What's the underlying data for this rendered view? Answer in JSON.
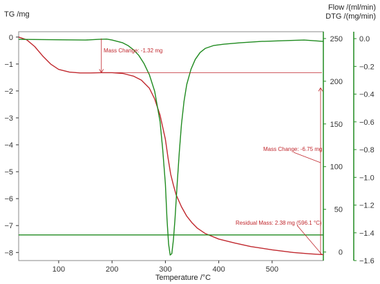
{
  "colors": {
    "tg": "#c0272d",
    "dtg": "#1e8a1e",
    "flow": "#1e8a1e",
    "axis": "#333333",
    "frame": "#888888"
  },
  "chart_data": {
    "type": "line",
    "xlabel": "Temperature /°C",
    "ylabel_left": "TG /mg",
    "ylabel_right_flow": "Flow /(ml/min)",
    "ylabel_right_dtg": "DTG /(mg/min)",
    "xlim": [
      25,
      596
    ],
    "ylim_tg": [
      -8.3,
      0.2
    ],
    "ylim_flow": [
      -10,
      258
    ],
    "ylim_dtg": [
      -1.6,
      0.05
    ],
    "x_ticks": [
      100,
      200,
      300,
      400,
      500
    ],
    "x_tick_labels": [
      "100",
      "200",
      "300",
      "400",
      "500"
    ],
    "tg_ticks": [
      0,
      -1,
      -2,
      -3,
      -4,
      -5,
      -6,
      -7,
      -8
    ],
    "tg_tick_labels": [
      "0",
      "−1",
      "−2",
      "−3",
      "−4",
      "−5",
      "−6",
      "−7",
      "−8"
    ],
    "flow_ticks": [
      0,
      50,
      100,
      150,
      200,
      250
    ],
    "flow_tick_labels": [
      "0",
      "50",
      "100",
      "150",
      "200",
      "250"
    ],
    "dtg_ticks": [
      0.0,
      -0.2,
      -0.4,
      -0.6,
      -0.8,
      -1.0,
      -1.2,
      -1.4,
      -1.6
    ],
    "dtg_tick_labels": [
      "0.0",
      "−0.2",
      "−0.4",
      "−0.6",
      "−0.8",
      "−1.0",
      "−1.2",
      "−1.4",
      "−1.6"
    ],
    "series": [
      {
        "name": "TG",
        "axis": "tg",
        "x": [
          25,
          40,
          55,
          70,
          85,
          100,
          120,
          140,
          160,
          180,
          200,
          220,
          240,
          255,
          270,
          280,
          290,
          300,
          305,
          310,
          315,
          320,
          330,
          340,
          350,
          360,
          375,
          400,
          430,
          460,
          500,
          540,
          570,
          596
        ],
        "y": [
          0,
          -0.1,
          -0.35,
          -0.7,
          -1.0,
          -1.2,
          -1.3,
          -1.33,
          -1.33,
          -1.32,
          -1.32,
          -1.35,
          -1.45,
          -1.6,
          -1.9,
          -2.3,
          -2.9,
          -3.8,
          -4.5,
          -5.1,
          -5.5,
          -5.85,
          -6.3,
          -6.65,
          -6.9,
          -7.1,
          -7.3,
          -7.5,
          -7.65,
          -7.78,
          -7.9,
          -8.0,
          -8.05,
          -8.08
        ]
      },
      {
        "name": "DTG",
        "axis": "dtg",
        "x": [
          25,
          100,
          150,
          175,
          190,
          200,
          210,
          220,
          230,
          240,
          250,
          260,
          270,
          280,
          290,
          295,
          300,
          303,
          306,
          309,
          312,
          315,
          318,
          322,
          326,
          330,
          335,
          340,
          348,
          356,
          365,
          375,
          390,
          410,
          440,
          480,
          520,
          560,
          596
        ],
        "y": [
          -0.005,
          -0.008,
          -0.01,
          -0.005,
          -0.003,
          -0.01,
          -0.02,
          -0.03,
          -0.05,
          -0.08,
          -0.12,
          -0.18,
          -0.26,
          -0.38,
          -0.6,
          -0.8,
          -1.05,
          -1.3,
          -1.48,
          -1.56,
          -1.55,
          -1.45,
          -1.3,
          -1.05,
          -0.82,
          -0.62,
          -0.45,
          -0.33,
          -0.22,
          -0.15,
          -0.1,
          -0.07,
          -0.05,
          -0.04,
          -0.03,
          -0.02,
          -0.015,
          -0.01,
          -0.02
        ]
      },
      {
        "name": "Flow",
        "axis": "flow",
        "x": [
          25,
          596
        ],
        "y": [
          20,
          20
        ]
      }
    ],
    "annotations": {
      "mass_change_1": "Mass Change: -1.32 mg",
      "mass_change_2": "Mass Change: -6.75 mg",
      "residual": "Residual Mass: 2.38 mg (596.1 °C)"
    },
    "grid": false,
    "legend": "none"
  }
}
